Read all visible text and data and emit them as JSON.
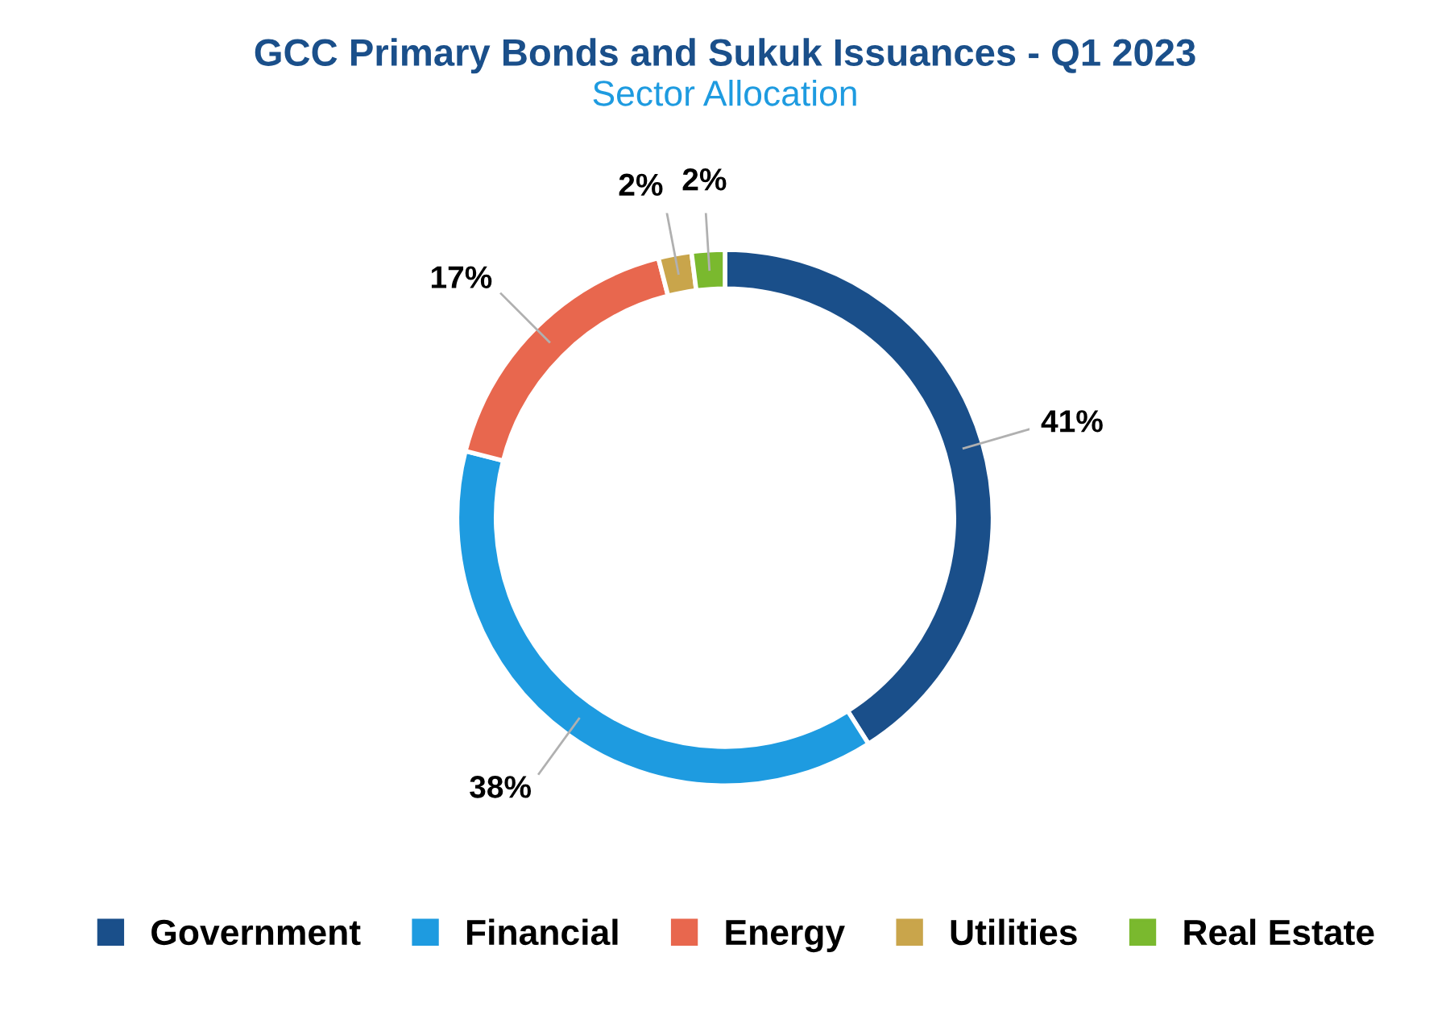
{
  "chart_data": {
    "type": "donut",
    "title": "GCC Primary Bonds and Sukuk Issuances - Q1 2023",
    "subtitle": "Sector Allocation",
    "categories": [
      "Government",
      "Financial",
      "Energy",
      "Utilities",
      "Real Estate"
    ],
    "values": [
      41,
      38,
      17,
      2,
      2
    ],
    "colors": [
      "#1a4f8a",
      "#1e9be0",
      "#e8674e",
      "#c9a54b",
      "#7ab92e"
    ],
    "value_labels": [
      "41%",
      "38%",
      "17%",
      "2%",
      "2%"
    ],
    "legend": "bottom"
  }
}
